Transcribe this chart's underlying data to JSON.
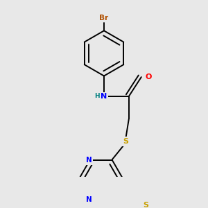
{
  "bg_color": "#e8e8e8",
  "atom_colors": {
    "Br": "#b05000",
    "N": "#0000ff",
    "O": "#ff0000",
    "S": "#c8a000",
    "H": "#008080",
    "C": "#000000"
  },
  "bond_color": "#000000",
  "bond_width": 1.4
}
